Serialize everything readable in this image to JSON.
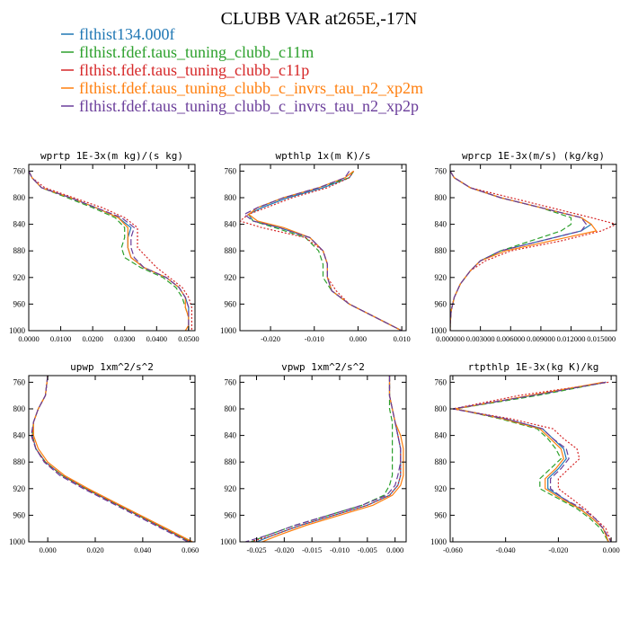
{
  "title": "CLUBB VAR at265E,-17N",
  "colors": {
    "s0": "#1f77b4",
    "s1": "#2ca02c",
    "s2": "#d62728",
    "s3": "#ff7f0e",
    "s4": "#6a3d9a"
  },
  "legend": [
    "flthist134.000f",
    "flthist.fdef.taus_tuning_clubb_c11m",
    "flthist.fdef.taus_tuning_clubb_c11p",
    "flthist.fdef.taus_tuning_clubb_c_invrs_tau_n2_xp2m",
    "flthist.fdef.taus_tuning_clubb_c_invrs_tau_n2_xp2p"
  ],
  "chart_data": [
    {
      "type": "line",
      "title": "wprtp  1E-3x(m kg)/(s kg)",
      "xlim": [
        0,
        0.052
      ],
      "ylim": [
        1000,
        750
      ],
      "xticks": [
        "0.0000",
        "0.0100",
        "0.0200",
        "0.0300",
        "0.0400",
        "0.0500"
      ],
      "xtick_values": [
        0,
        0.01,
        0.02,
        0.03,
        0.04,
        0.05
      ],
      "yticks": [
        "760",
        "800",
        "840",
        "880",
        "920",
        "960",
        "1000"
      ],
      "ytick_values": [
        760,
        800,
        840,
        880,
        920,
        960,
        1000
      ],
      "y": [
        760,
        770,
        785,
        800,
        815,
        830,
        845,
        860,
        875,
        890,
        905,
        920,
        935,
        950,
        965,
        980,
        992,
        1000
      ],
      "series": [
        {
          "values": [
            0,
            0.001,
            0.004,
            0.013,
            0.021,
            0.028,
            0.032,
            0.031,
            0.031,
            0.032,
            0.036,
            0.043,
            0.047,
            0.049,
            0.05,
            0.05,
            0.05,
            0.05
          ]
        },
        {
          "values": [
            0,
            0.001,
            0.004,
            0.012,
            0.02,
            0.027,
            0.03,
            0.03,
            0.029,
            0.03,
            0.035,
            0.042,
            0.046,
            0.048,
            0.049,
            0.05,
            0.05,
            0.05
          ]
        },
        {
          "values": [
            0,
            0.001,
            0.005,
            0.014,
            0.023,
            0.03,
            0.034,
            0.034,
            0.034,
            0.037,
            0.04,
            0.044,
            0.048,
            0.05,
            0.051,
            0.051,
            0.051,
            0.051
          ]
        },
        {
          "values": [
            0,
            0.001,
            0.004,
            0.013,
            0.021,
            0.028,
            0.031,
            0.031,
            0.031,
            0.032,
            0.036,
            0.043,
            0.047,
            0.049,
            0.049,
            0.05,
            0.05,
            0.049
          ]
        },
        {
          "values": [
            0,
            0.001,
            0.004,
            0.013,
            0.021,
            0.029,
            0.033,
            0.032,
            0.032,
            0.033,
            0.036,
            0.043,
            0.047,
            0.049,
            0.05,
            0.05,
            0.05,
            0.05
          ]
        }
      ]
    },
    {
      "type": "line",
      "title": "wpthlp  1x(m K)/s",
      "xlim": [
        -0.027,
        0.011
      ],
      "ylim": [
        1000,
        750
      ],
      "xticks": [
        "-0.020",
        "-0.010",
        "0.000",
        "0.010"
      ],
      "xtick_values": [
        -0.02,
        -0.01,
        0,
        0.01
      ],
      "yticks": [
        "760",
        "800",
        "840",
        "880",
        "920",
        "960",
        "1000"
      ],
      "ytick_values": [
        760,
        800,
        840,
        880,
        920,
        960,
        1000
      ],
      "y": [
        760,
        770,
        785,
        800,
        815,
        825,
        835,
        845,
        860,
        880,
        900,
        920,
        940,
        960,
        980,
        1000
      ],
      "series": [
        {
          "values": [
            -0.001,
            -0.002,
            -0.008,
            -0.016,
            -0.022,
            -0.025,
            -0.024,
            -0.018,
            -0.011,
            -0.008,
            -0.007,
            -0.007,
            -0.006,
            -0.002,
            0.004,
            0.01
          ]
        },
        {
          "values": [
            -0.001,
            -0.002,
            -0.009,
            -0.017,
            -0.023,
            -0.025,
            -0.024,
            -0.019,
            -0.012,
            -0.009,
            -0.008,
            -0.008,
            -0.006,
            -0.002,
            0.004,
            0.01
          ]
        },
        {
          "values": [
            -0.001,
            -0.002,
            -0.007,
            -0.015,
            -0.021,
            -0.025,
            -0.027,
            -0.022,
            -0.012,
            -0.008,
            -0.007,
            -0.007,
            -0.005,
            -0.002,
            0.004,
            0.01
          ]
        },
        {
          "values": [
            -0.001,
            -0.003,
            -0.009,
            -0.017,
            -0.023,
            -0.025,
            -0.023,
            -0.017,
            -0.011,
            -0.008,
            -0.007,
            -0.007,
            -0.006,
            -0.002,
            0.004,
            0.01
          ]
        },
        {
          "values": [
            -0.002,
            -0.003,
            -0.009,
            -0.017,
            -0.023,
            -0.026,
            -0.024,
            -0.018,
            -0.011,
            -0.008,
            -0.007,
            -0.007,
            -0.006,
            -0.002,
            0.004,
            0.01
          ]
        }
      ]
    },
    {
      "type": "line",
      "title": "wprcp  1E-3x(m/s) (kg/kg)",
      "xlim": [
        0,
        0.0165
      ],
      "ylim": [
        1000,
        750
      ],
      "xticks": [
        "0.000000",
        "0.003000",
        "0.006000",
        "0.009000",
        "0.012000",
        "0.015000"
      ],
      "xtick_values": [
        0,
        0.003,
        0.006,
        0.009,
        0.012,
        0.015
      ],
      "yticks": [
        "760",
        "800",
        "840",
        "880",
        "920",
        "960",
        "1000"
      ],
      "ytick_values": [
        760,
        800,
        840,
        880,
        920,
        960,
        1000
      ],
      "y": [
        760,
        770,
        785,
        800,
        815,
        830,
        840,
        850,
        865,
        880,
        895,
        910,
        930,
        950,
        970,
        990,
        1000
      ],
      "series": [
        {
          "values": [
            0,
            0.0004,
            0.002,
            0.005,
            0.009,
            0.013,
            0.014,
            0.013,
            0.009,
            0.005,
            0.003,
            0.002,
            0.001,
            0.0004,
            0.0001,
            0,
            0
          ]
        },
        {
          "values": [
            0,
            0.0004,
            0.002,
            0.005,
            0.009,
            0.012,
            0.012,
            0.011,
            0.008,
            0.005,
            0.003,
            0.002,
            0.001,
            0.0004,
            0.0001,
            0,
            0
          ]
        },
        {
          "values": [
            0,
            0.0004,
            0.002,
            0.006,
            0.01,
            0.014,
            0.0165,
            0.015,
            0.011,
            0.006,
            0.0035,
            0.002,
            0.001,
            0.0004,
            0.0001,
            0,
            0
          ]
        },
        {
          "values": [
            0,
            0.0004,
            0.002,
            0.005,
            0.009,
            0.013,
            0.014,
            0.0145,
            0.01,
            0.0055,
            0.003,
            0.002,
            0.001,
            0.0004,
            0.0001,
            0,
            0
          ]
        },
        {
          "values": [
            0,
            0.0004,
            0.002,
            0.005,
            0.009,
            0.013,
            0.0135,
            0.013,
            0.009,
            0.005,
            0.003,
            0.002,
            0.001,
            0.0004,
            0.0001,
            0,
            0
          ]
        }
      ]
    },
    {
      "type": "line",
      "title": "upwp  1xm^2/s^2",
      "xlim": [
        -0.008,
        0.062
      ],
      "ylim": [
        1000,
        750
      ],
      "xticks": [
        "0.000",
        "0.020",
        "0.040",
        "0.060"
      ],
      "xtick_values": [
        0,
        0.02,
        0.04,
        0.06
      ],
      "yticks": [
        "760",
        "800",
        "840",
        "880",
        "920",
        "960",
        "1000"
      ],
      "ytick_values": [
        760,
        800,
        840,
        880,
        920,
        960,
        1000
      ],
      "y": [
        750,
        780,
        800,
        820,
        840,
        860,
        880,
        900,
        920,
        940,
        960,
        980,
        1000
      ],
      "series": [
        {
          "values": [
            0,
            -0.001,
            -0.004,
            -0.006,
            -0.0065,
            -0.005,
            -0.001,
            0.006,
            0.016,
            0.027,
            0.038,
            0.049,
            0.06
          ]
        },
        {
          "values": [
            0,
            -0.001,
            -0.004,
            -0.006,
            -0.0065,
            -0.005,
            -0.001,
            0.006,
            0.016,
            0.027,
            0.038,
            0.049,
            0.06
          ]
        },
        {
          "values": [
            0,
            -0.001,
            -0.004,
            -0.006,
            -0.0065,
            -0.005,
            -0.001,
            0.006,
            0.016,
            0.027,
            0.038,
            0.049,
            0.06
          ]
        },
        {
          "values": [
            0,
            -0.001,
            -0.004,
            -0.006,
            -0.006,
            -0.004,
            0,
            0.007,
            0.017,
            0.028,
            0.039,
            0.05,
            0.061
          ]
        },
        {
          "values": [
            0,
            -0.001,
            -0.004,
            -0.006,
            -0.007,
            -0.005,
            -0.0015,
            0.005,
            0.015,
            0.026,
            0.037,
            0.048,
            0.059
          ]
        }
      ]
    },
    {
      "type": "line",
      "title": "vpwp  1xm^2/s^2",
      "xlim": [
        -0.028,
        0.002
      ],
      "ylim": [
        1000,
        750
      ],
      "xticks": [
        "-0.025",
        "-0.020",
        "-0.015",
        "-0.010",
        "-0.005",
        "0.000"
      ],
      "xtick_values": [
        -0.025,
        -0.02,
        -0.015,
        -0.01,
        -0.005,
        0
      ],
      "yticks": [
        "760",
        "800",
        "840",
        "880",
        "920",
        "960",
        "1000"
      ],
      "ytick_values": [
        760,
        800,
        840,
        880,
        920,
        960,
        1000
      ],
      "y": [
        750,
        780,
        800,
        820,
        840,
        860,
        880,
        900,
        915,
        930,
        945,
        960,
        975,
        990,
        1000
      ],
      "series": [
        {
          "values": [
            -0.001,
            -0.001,
            -0.0005,
            0,
            0.0005,
            0.001,
            0.001,
            0.001,
            0.0005,
            -0.001,
            -0.005,
            -0.011,
            -0.017,
            -0.022,
            -0.025
          ]
        },
        {
          "values": [
            -0.001,
            -0.001,
            -0.001,
            -0.0005,
            -0.0005,
            -0.0005,
            -0.0005,
            -0.0005,
            -0.001,
            -0.002,
            -0.006,
            -0.012,
            -0.018,
            -0.023,
            -0.026
          ]
        },
        {
          "values": [
            -0.001,
            -0.001,
            -0.0005,
            0,
            0.0005,
            0.001,
            0.001,
            0.001,
            0.0005,
            -0.001,
            -0.005,
            -0.011,
            -0.017,
            -0.022,
            -0.026
          ]
        },
        {
          "values": [
            -0.001,
            -0.001,
            -0.0005,
            0,
            0.001,
            0.0015,
            0.0015,
            0.0015,
            0.001,
            -0.0005,
            -0.004,
            -0.01,
            -0.016,
            -0.021,
            -0.024
          ]
        },
        {
          "values": [
            -0.001,
            -0.001,
            -0.0005,
            0,
            0.0005,
            0.001,
            0.001,
            0.0005,
            0,
            -0.0015,
            -0.006,
            -0.012,
            -0.018,
            -0.023,
            -0.027
          ]
        }
      ]
    },
    {
      "type": "line",
      "title": "rtpthlp  1E-3x(kg K)/kg",
      "xlim": [
        -0.061,
        0.002
      ],
      "ylim": [
        1000,
        750
      ],
      "xticks": [
        "-0.060",
        "-0.040",
        "-0.020",
        "0.000"
      ],
      "xtick_values": [
        -0.06,
        -0.04,
        -0.02,
        0
      ],
      "yticks": [
        "760",
        "800",
        "840",
        "880",
        "920",
        "960",
        "1000"
      ],
      "ytick_values": [
        760,
        800,
        840,
        880,
        920,
        960,
        1000
      ],
      "y": [
        760,
        780,
        800,
        815,
        830,
        845,
        860,
        875,
        890,
        905,
        920,
        935,
        950,
        965,
        980,
        1000
      ],
      "series": [
        {
          "values": [
            -0.002,
            -0.03,
            -0.059,
            -0.04,
            -0.026,
            -0.022,
            -0.018,
            -0.017,
            -0.02,
            -0.024,
            -0.024,
            -0.018,
            -0.012,
            -0.007,
            -0.003,
            -0.001
          ]
        },
        {
          "values": [
            -0.002,
            -0.028,
            -0.059,
            -0.042,
            -0.028,
            -0.024,
            -0.021,
            -0.019,
            -0.023,
            -0.027,
            -0.027,
            -0.02,
            -0.013,
            -0.008,
            -0.004,
            -0.001
          ]
        },
        {
          "values": [
            -0.001,
            -0.035,
            -0.06,
            -0.038,
            -0.022,
            -0.018,
            -0.013,
            -0.012,
            -0.016,
            -0.02,
            -0.02,
            -0.015,
            -0.01,
            -0.006,
            -0.002,
            0
          ]
        },
        {
          "values": [
            -0.003,
            -0.031,
            -0.059,
            -0.041,
            -0.027,
            -0.023,
            -0.019,
            -0.018,
            -0.021,
            -0.025,
            -0.025,
            -0.019,
            -0.012,
            -0.007,
            -0.003,
            -0.001
          ]
        },
        {
          "values": [
            -0.002,
            -0.03,
            -0.06,
            -0.04,
            -0.026,
            -0.022,
            -0.017,
            -0.016,
            -0.019,
            -0.023,
            -0.023,
            -0.018,
            -0.011,
            -0.006,
            -0.003,
            0
          ]
        }
      ]
    }
  ]
}
